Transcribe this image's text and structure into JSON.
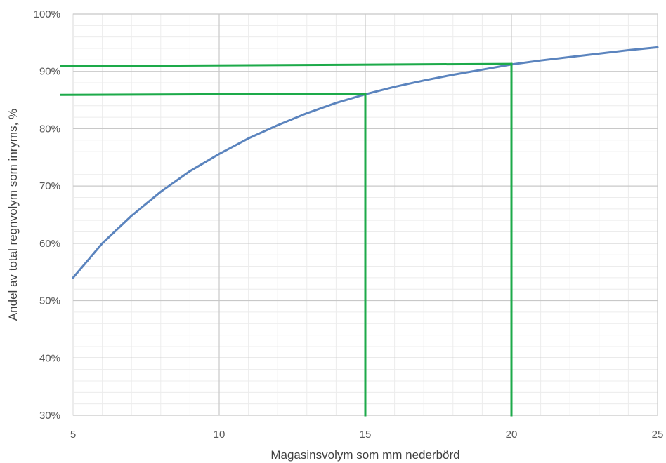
{
  "chart_data": {
    "type": "line",
    "title": "",
    "xlabel": "Magasinsvolym som mm nederbörd",
    "ylabel": "Andel av total regnvolym som inryms, %",
    "xlim": [
      5,
      25
    ],
    "ylim": [
      30,
      100
    ],
    "x_ticks": [
      5,
      10,
      15,
      20,
      25
    ],
    "x_tick_labels": [
      "5",
      "10",
      "15",
      "20",
      "25"
    ],
    "y_ticks": [
      30,
      40,
      50,
      60,
      70,
      80,
      90,
      100
    ],
    "y_tick_labels": [
      "30%",
      "40%",
      "50%",
      "60%",
      "70%",
      "80%",
      "90%",
      "100%"
    ],
    "grid": true,
    "legend": "none",
    "series": [
      {
        "color": "#5B84BE",
        "x": [
          5,
          6,
          7,
          8,
          9,
          10,
          11,
          12,
          13,
          14,
          15,
          16,
          17,
          18,
          19,
          20,
          21,
          22,
          23,
          24,
          25
        ],
        "y": [
          54.0,
          60.0,
          64.8,
          69.0,
          72.6,
          75.6,
          78.3,
          80.6,
          82.7,
          84.5,
          86.0,
          87.3,
          88.4,
          89.4,
          90.3,
          91.2,
          91.9,
          92.5,
          93.1,
          93.7,
          94.2
        ]
      }
    ],
    "reference_lines": {
      "color": "#1DAA4A",
      "segments": [
        {
          "from": [
            4.6,
            85.9
          ],
          "to": [
            15,
            86.1
          ]
        },
        {
          "from": [
            15,
            86.1
          ],
          "to": [
            15,
            30
          ]
        },
        {
          "from": [
            4.6,
            90.9
          ],
          "to": [
            20,
            91.3
          ]
        },
        {
          "from": [
            20,
            91.3
          ],
          "to": [
            20,
            30
          ]
        }
      ]
    }
  }
}
